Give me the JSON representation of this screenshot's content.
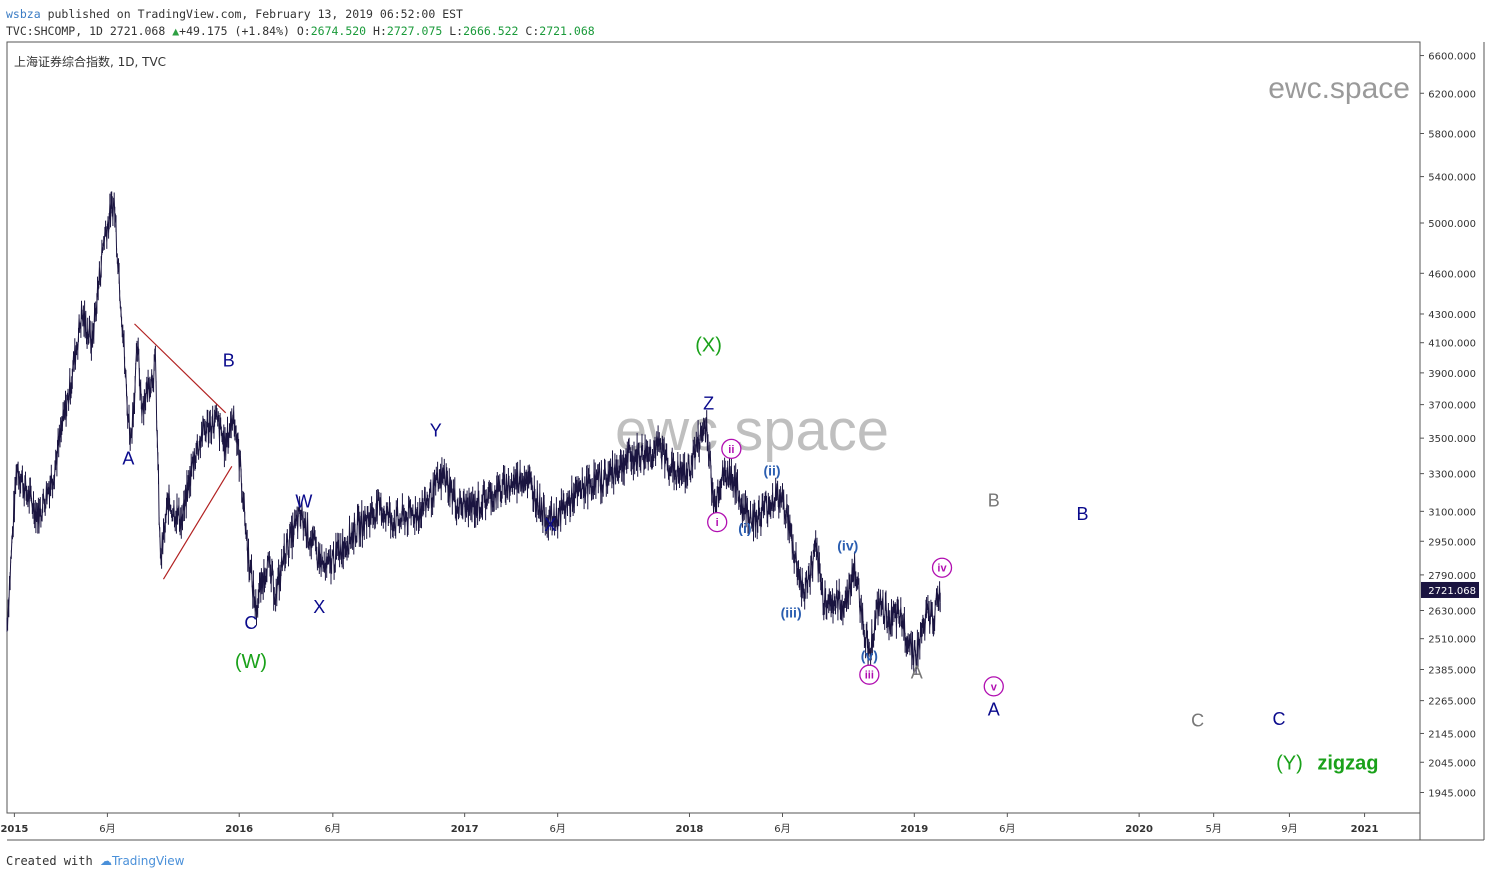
{
  "header": {
    "author": "wsbza",
    "published_text": "published on TradingView.com, February 13, 2019 06:52:00 EST",
    "symbol": "TVC:SHCOMP, 1D",
    "last": "2721.068",
    "change": "+49.175 (+1.84%)",
    "o_label": "O:",
    "open": "2674.520",
    "h_label": "H:",
    "high": "2727.075",
    "l_label": "L:",
    "low": "2666.522",
    "c_label": "C:",
    "close": "2721.068"
  },
  "footer": {
    "created_with": "Created with",
    "brand": "TradingView"
  },
  "colors": {
    "candles": "#1a1440",
    "triangle": "#b22222",
    "navy": "#0a0a8c",
    "green": "#1aa11a",
    "magenta": "#b10fb1",
    "blue": "#2a5db0",
    "gray": "#777777",
    "watermark": "#b5b5b5"
  },
  "chart_data": {
    "type": "line",
    "title": "上海证券综合指数, 1D, TVC",
    "watermark": "ewc.space",
    "y_scale": "log",
    "ylim": [
      1880,
      6750
    ],
    "y_ticks": [
      "6600.000",
      "6200.000",
      "5800.000",
      "5400.000",
      "5000.000",
      "4600.000",
      "4300.000",
      "4100.000",
      "3900.000",
      "3700.000",
      "3500.000",
      "3300.000",
      "3100.000",
      "2950.000",
      "2790.000",
      "2630.000",
      "2510.000",
      "2385.000",
      "2265.000",
      "2145.000",
      "2045.000",
      "1945.000"
    ],
    "x_ticks": [
      {
        "date": "2015-01-01",
        "label": "2015",
        "bold": true
      },
      {
        "date": "2015-06-01",
        "label": "6月",
        "bold": false
      },
      {
        "date": "2016-01-01",
        "label": "2016",
        "bold": true
      },
      {
        "date": "2016-06-01",
        "label": "6月",
        "bold": false
      },
      {
        "date": "2017-01-01",
        "label": "2017",
        "bold": true
      },
      {
        "date": "2017-06-01",
        "label": "6月",
        "bold": false
      },
      {
        "date": "2018-01-01",
        "label": "2018",
        "bold": true
      },
      {
        "date": "2018-06-01",
        "label": "6月",
        "bold": false
      },
      {
        "date": "2019-01-01",
        "label": "2019",
        "bold": true
      },
      {
        "date": "2019-06-01",
        "label": "6月",
        "bold": false
      },
      {
        "date": "2020-01-01",
        "label": "2020",
        "bold": true
      },
      {
        "date": "2020-05-01",
        "label": "5月",
        "bold": false
      },
      {
        "date": "2020-09-01",
        "label": "9月",
        "bold": false
      },
      {
        "date": "2021-01-01",
        "label": "2021",
        "bold": true
      }
    ],
    "xlim": [
      "2014-12-20",
      "2021-04-01"
    ],
    "last_price": "2721.068",
    "series": [
      {
        "points": [
          [
            "2014-12-20",
            2570
          ],
          [
            "2015-01-05",
            3350
          ],
          [
            "2015-01-20",
            3200
          ],
          [
            "2015-02-10",
            3080
          ],
          [
            "2015-03-05",
            3300
          ],
          [
            "2015-04-01",
            3800
          ],
          [
            "2015-04-20",
            4300
          ],
          [
            "2015-05-07",
            4100
          ],
          [
            "2015-05-27",
            4900
          ],
          [
            "2015-06-05",
            5050
          ],
          [
            "2015-06-12",
            5178
          ],
          [
            "2015-06-26",
            4200
          ],
          [
            "2015-07-03",
            3700
          ],
          [
            "2015-07-09",
            3500
          ],
          [
            "2015-07-20",
            4050
          ],
          [
            "2015-07-27",
            3700
          ],
          [
            "2015-08-05",
            3800
          ],
          [
            "2015-08-18",
            3950
          ],
          [
            "2015-08-26",
            2850
          ],
          [
            "2015-09-08",
            3150
          ],
          [
            "2015-09-30",
            3050
          ],
          [
            "2015-10-20",
            3400
          ],
          [
            "2015-11-05",
            3550
          ],
          [
            "2015-11-25",
            3600
          ],
          [
            "2015-12-10",
            3450
          ],
          [
            "2015-12-23",
            3650
          ],
          [
            "2016-01-04",
            3300
          ],
          [
            "2016-01-15",
            2900
          ],
          [
            "2016-01-28",
            2640
          ],
          [
            "2016-02-15",
            2850
          ],
          [
            "2016-03-01",
            2700
          ],
          [
            "2016-03-15",
            2900
          ],
          [
            "2016-04-10",
            3080
          ],
          [
            "2016-05-05",
            2900
          ],
          [
            "2016-05-20",
            2810
          ],
          [
            "2016-06-10",
            2900
          ],
          [
            "2016-07-05",
            3000
          ],
          [
            "2016-08-15",
            3120
          ],
          [
            "2016-09-10",
            3050
          ],
          [
            "2016-10-20",
            3100
          ],
          [
            "2016-11-29",
            3290
          ],
          [
            "2016-12-20",
            3130
          ],
          [
            "2017-01-15",
            3120
          ],
          [
            "2017-02-10",
            3180
          ],
          [
            "2017-03-10",
            3230
          ],
          [
            "2017-04-10",
            3290
          ],
          [
            "2017-05-10",
            3090
          ],
          [
            "2017-05-25",
            3050
          ],
          [
            "2017-06-20",
            3150
          ],
          [
            "2017-07-20",
            3240
          ],
          [
            "2017-08-20",
            3280
          ],
          [
            "2017-09-20",
            3380
          ],
          [
            "2017-11-14",
            3440
          ],
          [
            "2017-12-10",
            3300
          ],
          [
            "2017-12-29",
            3300
          ],
          [
            "2018-01-10",
            3430
          ],
          [
            "2018-01-29",
            3587
          ],
          [
            "2018-02-09",
            3130
          ],
          [
            "2018-02-20",
            3270
          ],
          [
            "2018-03-10",
            3300
          ],
          [
            "2018-03-28",
            3120
          ],
          [
            "2018-04-20",
            3060
          ],
          [
            "2018-05-20",
            3180
          ],
          [
            "2018-06-05",
            3140
          ],
          [
            "2018-06-19",
            2900
          ],
          [
            "2018-07-06",
            2700
          ],
          [
            "2018-07-25",
            2900
          ],
          [
            "2018-08-06",
            2690
          ],
          [
            "2018-08-17",
            2670
          ],
          [
            "2018-09-10",
            2660
          ],
          [
            "2018-09-26",
            2820
          ],
          [
            "2018-10-19",
            2449
          ],
          [
            "2018-11-05",
            2660
          ],
          [
            "2018-11-20",
            2600
          ],
          [
            "2018-12-10",
            2590
          ],
          [
            "2019-01-04",
            2440
          ],
          [
            "2019-01-20",
            2600
          ],
          [
            "2019-02-01",
            2600
          ],
          [
            "2019-02-13",
            2721
          ]
        ]
      }
    ],
    "triangle_lines": [
      [
        [
          "2015-07-15",
          4230
        ],
        [
          "2015-12-10",
          3650
        ]
      ],
      [
        [
          "2015-08-31",
          2770
        ],
        [
          "2015-12-20",
          3340
        ]
      ]
    ],
    "wave_labels": [
      {
        "date": "2015-07-05",
        "price": 3350,
        "text": "A",
        "style": "navy"
      },
      {
        "date": "2015-12-15",
        "price": 3940,
        "text": "B",
        "style": "navy"
      },
      {
        "date": "2016-01-20",
        "price": 2550,
        "text": "C",
        "style": "navy"
      },
      {
        "date": "2016-01-20",
        "price": 2390,
        "text": "(W)",
        "style": "green"
      },
      {
        "date": "2016-04-15",
        "price": 3120,
        "text": "W",
        "style": "navy"
      },
      {
        "date": "2016-05-10",
        "price": 2620,
        "text": "X",
        "style": "navy"
      },
      {
        "date": "2016-11-15",
        "price": 3510,
        "text": "Y",
        "style": "navy"
      },
      {
        "date": "2017-05-20",
        "price": 3000,
        "text": "X",
        "style": "navy"
      },
      {
        "date": "2018-02-01",
        "price": 3670,
        "text": "Z",
        "style": "navy"
      },
      {
        "date": "2018-02-01",
        "price": 4040,
        "text": "(X)",
        "style": "green"
      },
      {
        "date": "2018-02-15",
        "price": 3020,
        "text": "i",
        "style": "magenta-circle"
      },
      {
        "date": "2018-03-10",
        "price": 3410,
        "text": "ii",
        "style": "magenta-circle"
      },
      {
        "date": "2018-04-01",
        "price": 2990,
        "text": "(i)",
        "style": "blue"
      },
      {
        "date": "2018-05-15",
        "price": 3290,
        "text": "(ii)",
        "style": "blue"
      },
      {
        "date": "2018-06-15",
        "price": 2600,
        "text": "(iii)",
        "style": "blue"
      },
      {
        "date": "2018-09-15",
        "price": 2905,
        "text": "(iv)",
        "style": "blue"
      },
      {
        "date": "2018-10-20",
        "price": 2420,
        "text": "(v)",
        "style": "blue"
      },
      {
        "date": "2018-10-20",
        "price": 2345,
        "text": "iii",
        "style": "magenta-circle"
      },
      {
        "date": "2019-01-05",
        "price": 2350,
        "text": "A",
        "style": "gray"
      },
      {
        "date": "2019-02-15",
        "price": 2800,
        "text": "iv",
        "style": "magenta-circle"
      },
      {
        "date": "2019-05-10",
        "price": 3125,
        "text": "B",
        "style": "gray"
      },
      {
        "date": "2019-05-10",
        "price": 2300,
        "text": "v",
        "style": "magenta-circle"
      },
      {
        "date": "2019-05-10",
        "price": 2210,
        "text": "A",
        "style": "navy"
      },
      {
        "date": "2019-10-01",
        "price": 3055,
        "text": "B",
        "style": "navy"
      },
      {
        "date": "2020-04-05",
        "price": 2170,
        "text": "C",
        "style": "gray"
      },
      {
        "date": "2020-08-15",
        "price": 2175,
        "text": "C",
        "style": "navy"
      },
      {
        "date": "2020-09-01",
        "price": 2020,
        "text": "(Y)",
        "style": "green"
      },
      {
        "date": "2020-12-05",
        "price": 2020,
        "text": "zigzag",
        "style": "green-bold"
      }
    ]
  }
}
